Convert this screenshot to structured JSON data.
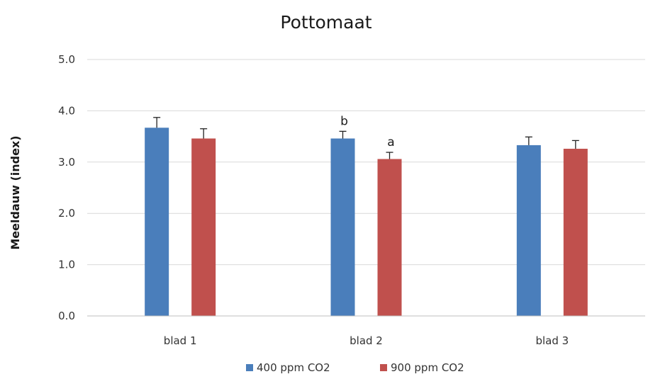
{
  "chart_data": {
    "type": "bar",
    "title": "Pottomaat",
    "xlabel": "",
    "ylabel": "Meeldauw (index)",
    "categories": [
      "blad 1",
      "blad 2",
      "blad 3"
    ],
    "series": [
      {
        "name": "400 ppm  CO2",
        "color": "#4a7ebb",
        "values": [
          3.67,
          3.46,
          3.33
        ],
        "errors": [
          0.2,
          0.14,
          0.16
        ]
      },
      {
        "name": "900 ppm CO2",
        "color": "#c0504d",
        "values": [
          3.46,
          3.06,
          3.26
        ],
        "errors": [
          0.19,
          0.13,
          0.16
        ]
      }
    ],
    "ylim": [
      0,
      5
    ],
    "yticks": [
      "0.0",
      "1.0",
      "2.0",
      "3.0",
      "4.0",
      "5.0"
    ],
    "grid": true,
    "legend_position": "bottom",
    "annotations": [
      {
        "text": "b",
        "category": "blad 2",
        "series": 0
      },
      {
        "text": "a",
        "category": "blad 2",
        "series": 1
      }
    ]
  }
}
